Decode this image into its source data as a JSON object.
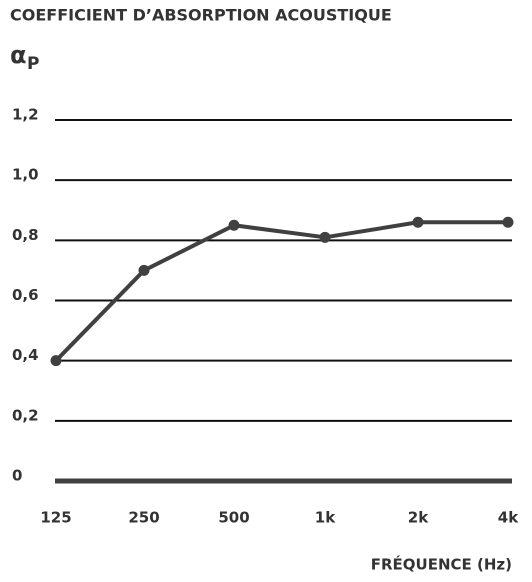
{
  "chart_data": {
    "type": "line",
    "title": "COEFFICIENT D’ABSORPTION ACOUSTIQUE",
    "ylabel": {
      "symbol": "α",
      "subscript": "P"
    },
    "xlabel": "FRÉQUENCE (Hz)",
    "categories": [
      "125",
      "250",
      "500",
      "1k",
      "2k",
      "4k"
    ],
    "series": [
      {
        "color": "#404040",
        "values": [
          0.4,
          0.7,
          0.85,
          0.81,
          0.86,
          0.86
        ]
      }
    ],
    "ylim": [
      0,
      1.2
    ],
    "yticks": [
      0,
      {
        "value": 0.2,
        "label": "0,2"
      },
      {
        "value": 0.4,
        "label": "0,4"
      },
      {
        "value": 0.6,
        "label": "0,6"
      },
      {
        "value": 0.8,
        "label": "0,8"
      },
      {
        "value": 1.0,
        "label": "1,0"
      },
      {
        "value": 1.2,
        "label": "1,2"
      }
    ],
    "grid": true
  }
}
